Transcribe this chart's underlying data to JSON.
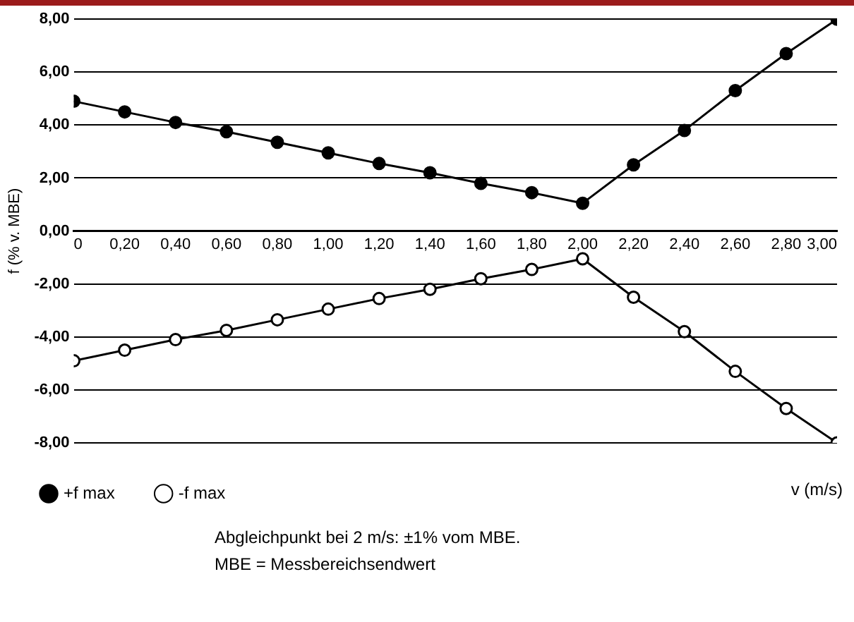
{
  "chart_data": {
    "type": "line",
    "ylabel": "f (% v. MBE)",
    "xlabel": "v (m/s)",
    "x": [
      0,
      0.2,
      0.4,
      0.6,
      0.8,
      1.0,
      1.2,
      1.4,
      1.6,
      1.8,
      2.0,
      2.2,
      2.4,
      2.6,
      2.8,
      3.0
    ],
    "series": [
      {
        "name": "+f max",
        "color": "#000000",
        "values": [
          4.9,
          4.5,
          4.1,
          3.75,
          3.35,
          2.95,
          2.55,
          2.2,
          1.8,
          1.45,
          1.05,
          2.5,
          3.8,
          5.3,
          6.7,
          8.0
        ]
      },
      {
        "name": "-f max",
        "color": "#ffffff",
        "values": [
          -4.9,
          -4.5,
          -4.1,
          -3.75,
          -3.35,
          -2.95,
          -2.55,
          -2.2,
          -1.8,
          -1.45,
          -1.05,
          -2.5,
          -3.8,
          -5.3,
          -6.7,
          -8.0
        ]
      }
    ],
    "xlim": [
      0,
      3
    ],
    "xticks": [
      0,
      {
        "value": 0.2,
        "label": "0,20"
      },
      {
        "value": 0.4,
        "label": "0,40"
      },
      {
        "value": 0.6,
        "label": "0,60"
      },
      {
        "value": 0.8,
        "label": "0,80"
      },
      {
        "value": 1,
        "label": "1,00"
      },
      {
        "value": 1.2,
        "label": "1,20"
      },
      {
        "value": 1.4,
        "label": "1,40"
      },
      {
        "value": 1.6,
        "label": "1,60"
      },
      {
        "value": 1.8,
        "label": "1,80"
      },
      {
        "value": 2,
        "label": "2,00"
      },
      {
        "value": 2.2,
        "label": "2,20"
      },
      {
        "value": 2.4,
        "label": "2,40"
      },
      {
        "value": 2.6,
        "label": "2,60"
      },
      {
        "value": 2.8,
        "label": "2,80"
      },
      {
        "value": 3,
        "label": "3,00"
      }
    ],
    "ylim": [
      -8,
      8
    ],
    "yticks": [
      {
        "value": -8,
        "label": "-8,00"
      },
      {
        "value": -6,
        "label": "-6,00"
      },
      {
        "value": -4,
        "label": "-4,00"
      },
      {
        "value": -2,
        "label": "-2,00"
      },
      {
        "value": 0,
        "label": "0,00"
      },
      {
        "value": 2,
        "label": "2,00"
      },
      {
        "value": 4,
        "label": "4,00"
      },
      {
        "value": 6,
        "label": "6,00"
      },
      {
        "value": 8,
        "label": "8,00"
      }
    ],
    "grid": "y",
    "marker": "circle",
    "line_style": "solid",
    "legend": "bottom left",
    "annotations": [
      "Abgleichpunkt bei 2 m/s: ±1% vom MBE.",
      "MBE = Messbereichsendwert"
    ]
  }
}
